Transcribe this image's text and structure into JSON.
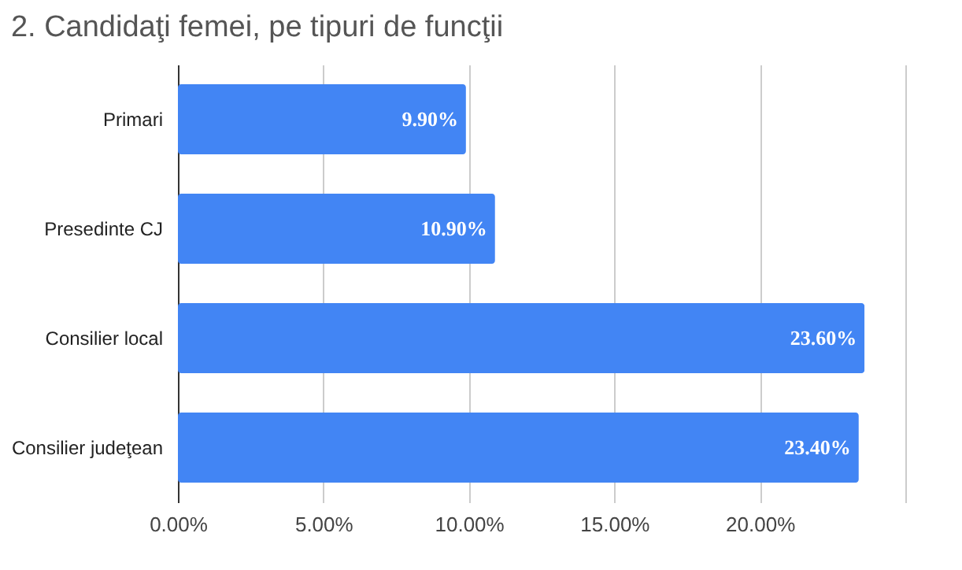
{
  "chart_data": {
    "type": "bar",
    "orientation": "horizontal",
    "title": "2. Candidaţi femei, pe tipuri de funcţii",
    "categories": [
      "Primari",
      "Presedinte CJ",
      "Consilier local",
      "Consilier judeţean"
    ],
    "values": [
      9.9,
      10.9,
      23.6,
      23.4
    ],
    "color": "#4285f4",
    "value_labels": [
      "9.90%",
      "10.90%",
      "23.60%",
      "23.40%"
    ],
    "xlim": [
      0,
      25
    ],
    "xticks": [
      {
        "value": 0,
        "label": "0.00%"
      },
      {
        "value": 5,
        "label": "5.00%"
      },
      {
        "value": 10,
        "label": "10.00%"
      },
      {
        "value": 15,
        "label": "15.00%"
      },
      {
        "value": 20,
        "label": "20.00%"
      },
      {
        "value": 25,
        "label": null
      }
    ],
    "grid": "x"
  }
}
